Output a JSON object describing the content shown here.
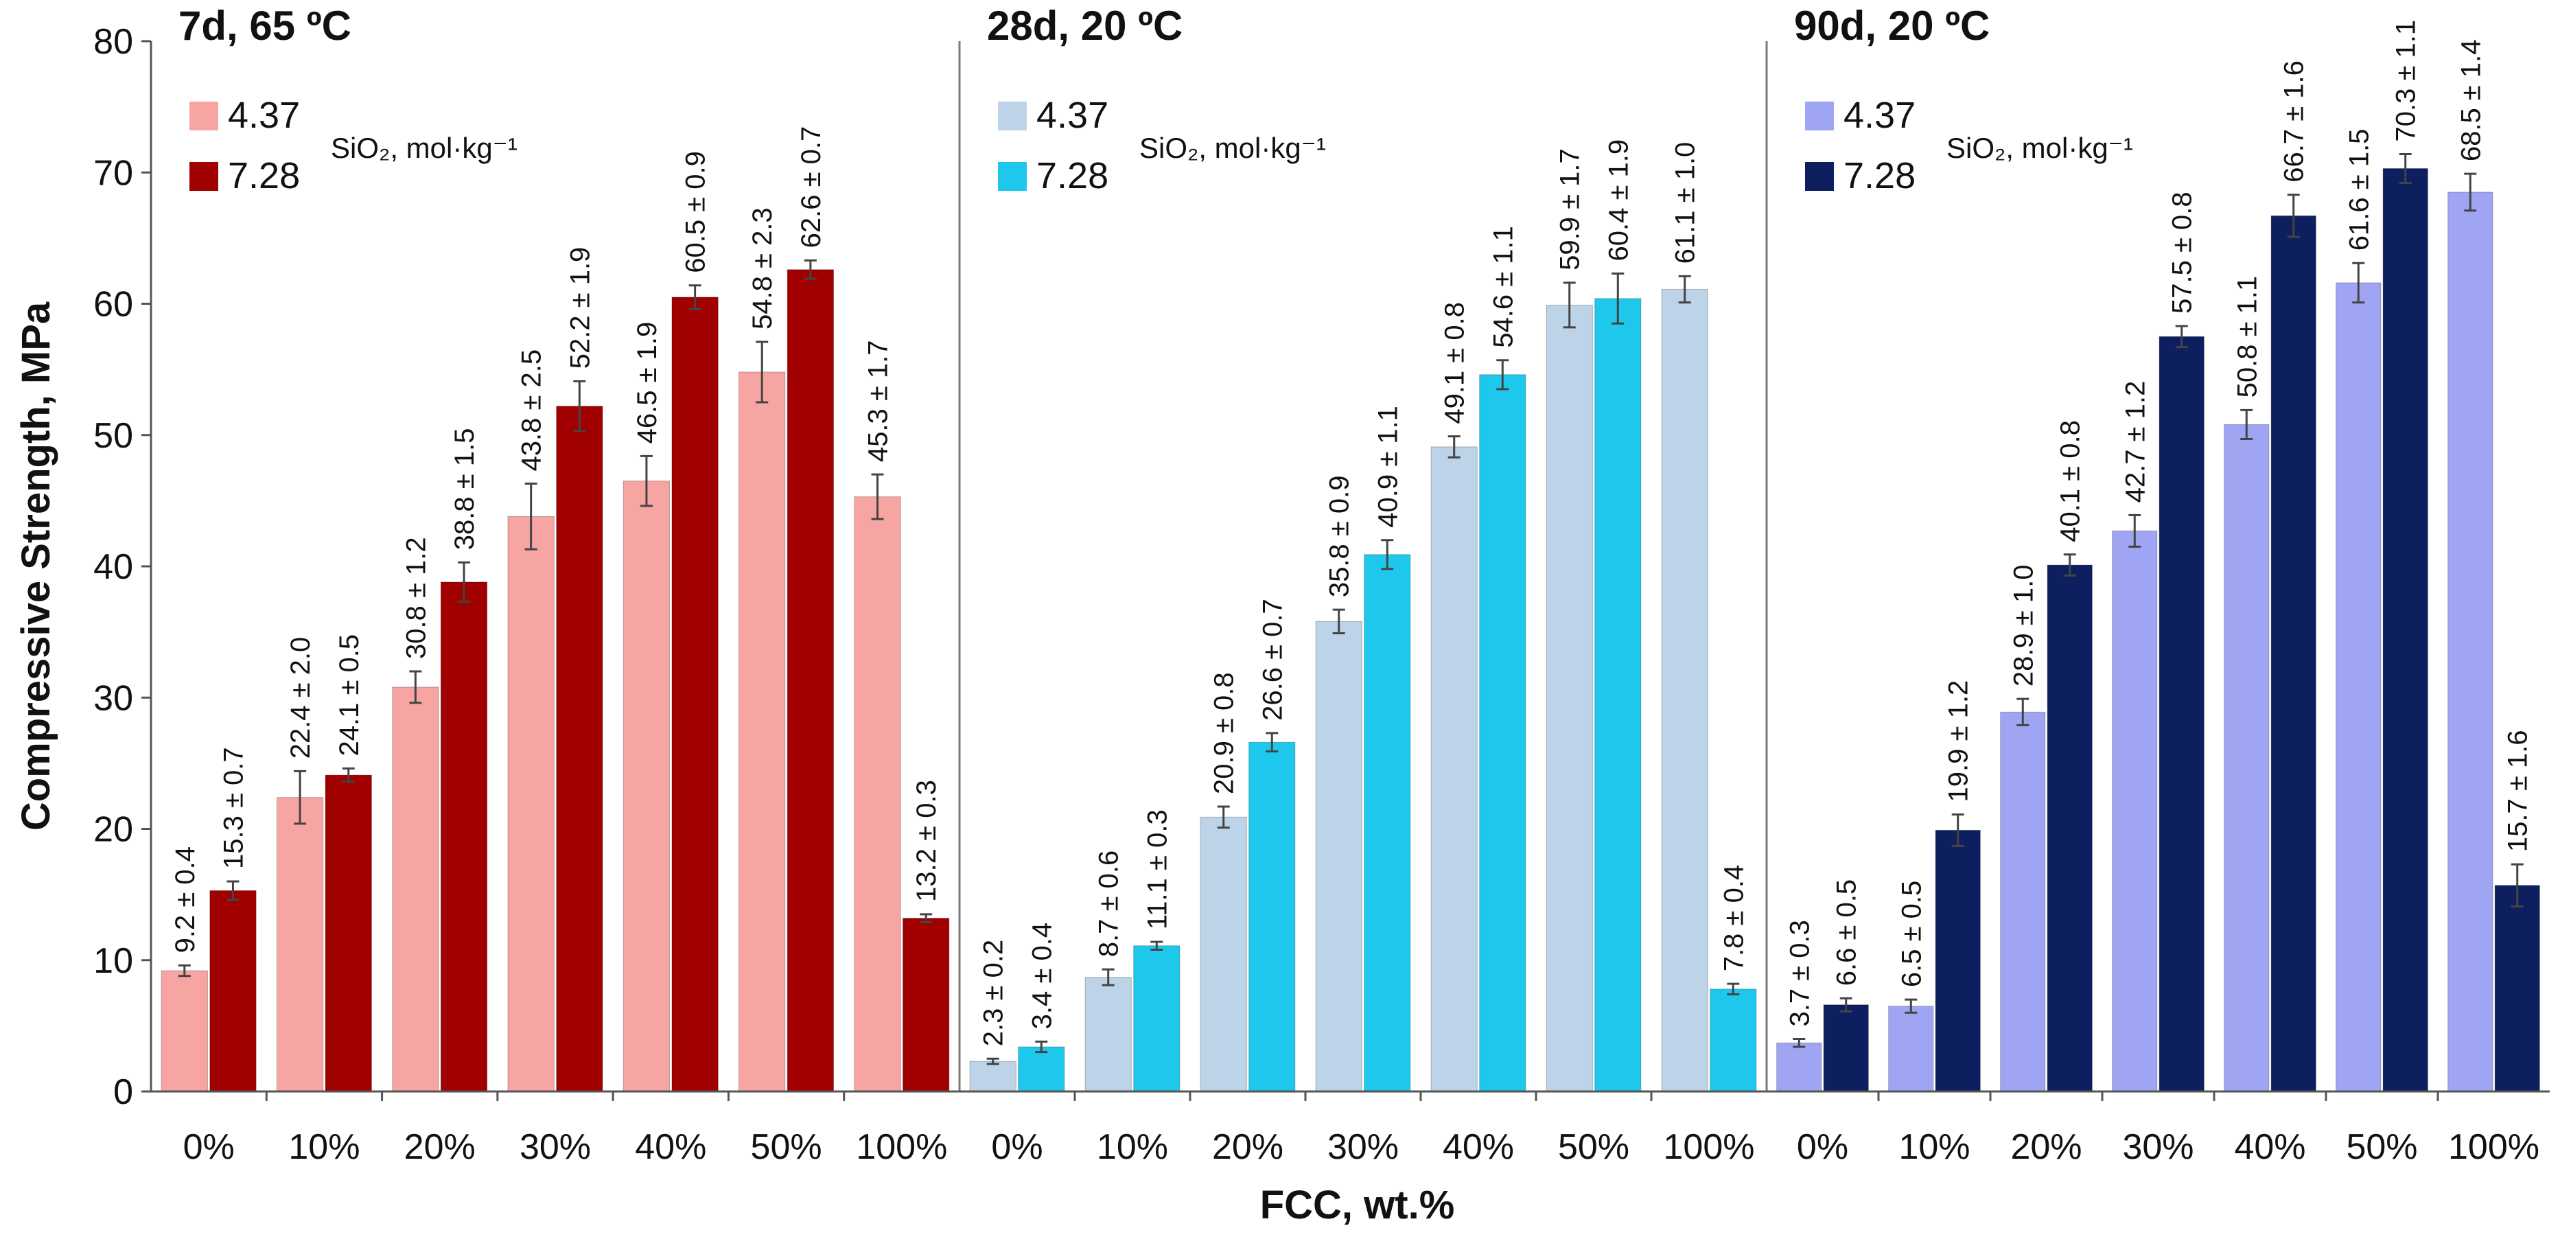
{
  "chart_data": {
    "type": "bar",
    "ylabel": "Compressive Strength, MPa",
    "xlabel": "FCC, wt.%",
    "ylim": [
      0,
      80
    ],
    "yticks": [
      "0",
      "10",
      "20",
      "30",
      "40",
      "50",
      "60",
      "70",
      "80"
    ],
    "ytick_values": [
      0,
      10,
      20,
      30,
      40,
      50,
      60,
      70,
      80
    ],
    "categories": [
      "0%",
      "10%",
      "20%",
      "30%",
      "40%",
      "50%",
      "100%"
    ],
    "legend_unit": "SiO₂, mol·kg⁻¹",
    "panels": [
      {
        "title": "7d, 65 ºC",
        "series": [
          {
            "name": "4.37",
            "color": "#f6a5a3",
            "values": [
              9.2,
              22.4,
              30.8,
              43.8,
              46.5,
              54.8,
              45.3
            ],
            "errors": [
              0.4,
              2.0,
              1.2,
              2.5,
              1.9,
              2.3,
              1.7
            ],
            "labels": [
              "9.2 ± 0.4",
              "22.4 ± 2.0",
              "30.8 ± 1.2",
              "43.8 ± 2.5",
              "46.5 ± 1.9",
              "54.8 ± 2.3",
              "45.3 ± 1.7"
            ]
          },
          {
            "name": "7.28",
            "color": "#a00000",
            "values": [
              15.3,
              24.1,
              38.8,
              52.2,
              60.5,
              62.6,
              13.2
            ],
            "errors": [
              0.7,
              0.5,
              1.5,
              1.9,
              0.9,
              0.7,
              0.3
            ],
            "labels": [
              "15.3 ± 0.7",
              "24.1 ± 0.5",
              "38.8 ± 1.5",
              "52.2 ± 1.9",
              "60.5 ± 0.9",
              "62.6 ± 0.7",
              "13.2 ± 0.3"
            ]
          }
        ]
      },
      {
        "title": "28d, 20 ºC",
        "series": [
          {
            "name": "4.37",
            "color": "#bcd3e8",
            "values": [
              2.3,
              8.7,
              20.9,
              35.8,
              49.1,
              59.9,
              61.1
            ],
            "errors": [
              0.2,
              0.6,
              0.8,
              0.9,
              0.8,
              1.7,
              1.0
            ],
            "labels": [
              "2.3 ± 0.2",
              "8.7 ± 0.6",
              "20.9 ± 0.8",
              "35.8 ± 0.9",
              "49.1 ± 0.8",
              "59.9 ± 1.7",
              "61.1 ± 1.0"
            ]
          },
          {
            "name": "7.28",
            "color": "#1ec8ec",
            "values": [
              3.4,
              11.1,
              26.6,
              40.9,
              54.6,
              60.4,
              7.8
            ],
            "errors": [
              0.4,
              0.3,
              0.7,
              1.1,
              1.1,
              1.9,
              0.4
            ],
            "labels": [
              "3.4 ± 0.4",
              "11.1 ± 0.3",
              "26.6 ± 0.7",
              "40.9 ± 1.1",
              "54.6 ± 1.1",
              "60.4 ± 1.9",
              "7.8 ± 0.4"
            ]
          }
        ]
      },
      {
        "title": "90d, 20 ºC",
        "series": [
          {
            "name": "4.37",
            "color": "#9fa5f2",
            "values": [
              3.7,
              6.5,
              28.9,
              42.7,
              50.8,
              61.6,
              68.5
            ],
            "errors": [
              0.3,
              0.5,
              1.0,
              1.2,
              1.1,
              1.5,
              1.4
            ],
            "labels": [
              "3.7 ± 0.3",
              "6.5 ± 0.5",
              "28.9 ± 1.0",
              "42.7 ± 1.2",
              "50.8 ± 1.1",
              "61.6 ± 1.5",
              "68.5 ± 1.4"
            ]
          },
          {
            "name": "7.28",
            "color": "#0d1f5e",
            "values": [
              6.6,
              19.9,
              40.1,
              57.5,
              66.7,
              70.3,
              15.7
            ],
            "errors": [
              0.5,
              1.2,
              0.8,
              0.8,
              1.6,
              1.1,
              1.6
            ],
            "labels": [
              "6.6 ± 0.5",
              "19.9 ± 1.2",
              "40.1 ± 0.8",
              "57.5 ± 0.8",
              "66.7 ± 1.6",
              "70.3 ± 1.1",
              "15.7 ± 1.6"
            ]
          }
        ]
      }
    ]
  }
}
